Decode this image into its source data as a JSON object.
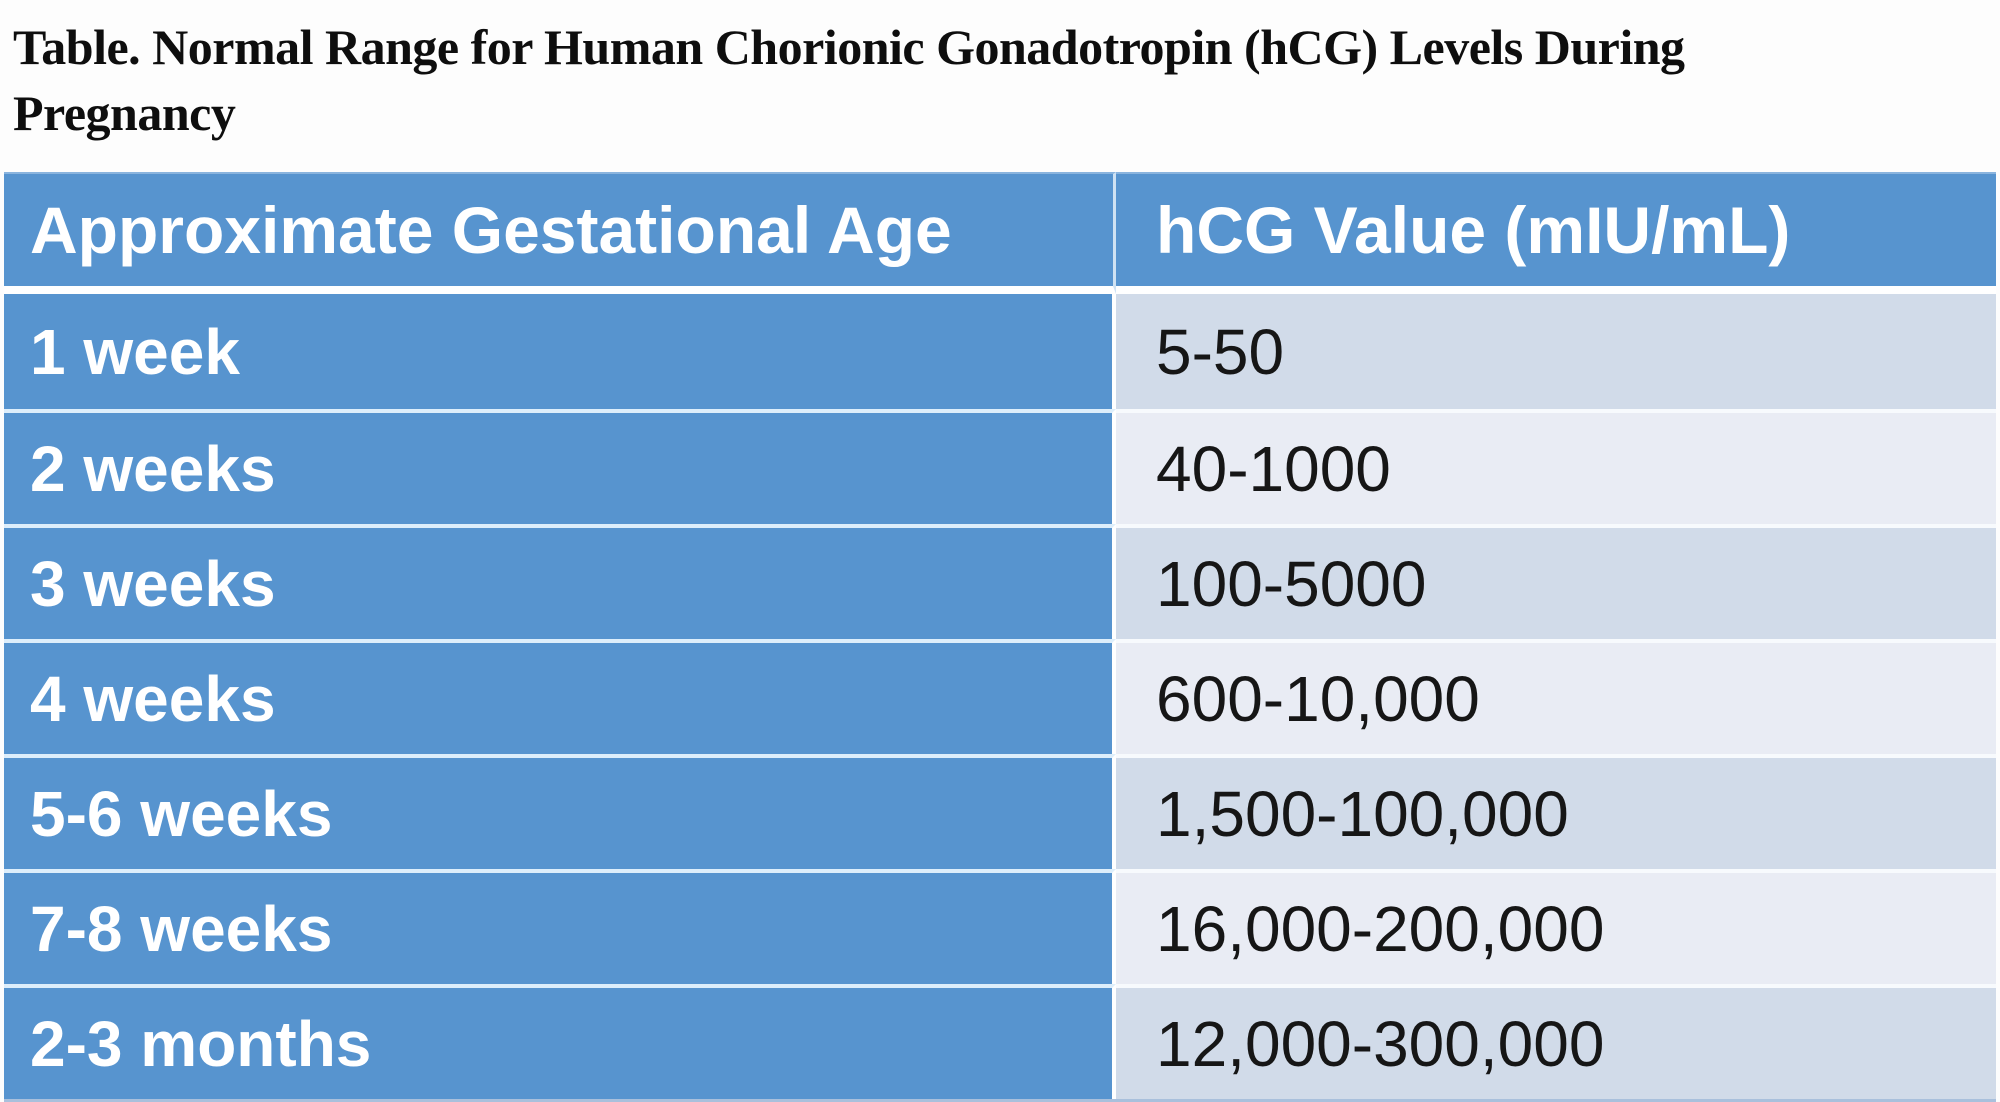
{
  "title": {
    "line1": "Table. Normal Range for Human Chorionic Gonadotropin (hCG) Levels During",
    "line2": "Pregnancy"
  },
  "table": {
    "columns": [
      "Approximate Gestational Age",
      "hCG Value (mIU/mL)"
    ],
    "rows": [
      {
        "age": "1 week",
        "value": "5-50"
      },
      {
        "age": "2 weeks",
        "value": "40-1000"
      },
      {
        "age": "3 weeks",
        "value": "100-5000"
      },
      {
        "age": "4 weeks",
        "value": "600-10,000"
      },
      {
        "age": "5-6 weeks",
        "value": "1,500-100,000"
      },
      {
        "age": "7-8 weeks",
        "value": "16,000-200,000"
      },
      {
        "age": "2-3 months",
        "value": "12,000-300,000"
      }
    ],
    "colors": {
      "header_bg": "#5794cf",
      "band_dark": "#d1dbe9",
      "band_light": "#e9ecf4",
      "header_text": "#ffffff",
      "value_text": "#161616"
    }
  }
}
